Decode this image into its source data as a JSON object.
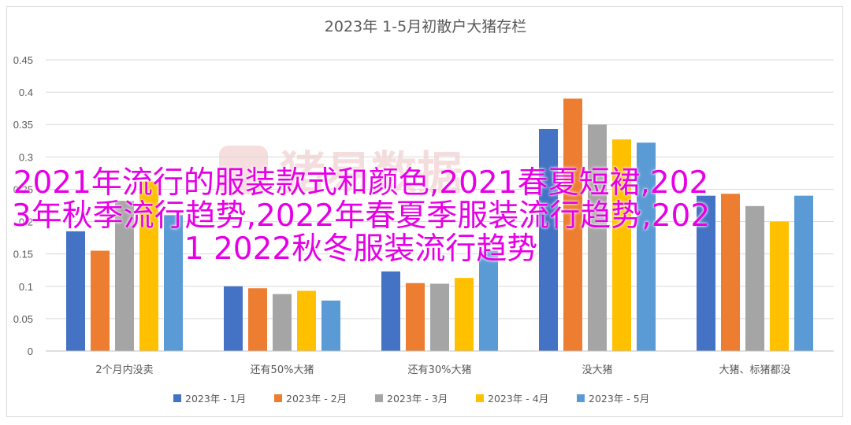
{
  "chart_data": {
    "type": "bar",
    "title": "2023年 1-5月初散户大猪存栏",
    "categories": [
      "2个月内没卖",
      "还有50%大猪",
      "还有30%大猪",
      "没大猪",
      "大猪、标猪都没"
    ],
    "series": [
      {
        "name": "2023年 - 1月",
        "color": "#4472C4",
        "values": [
          0.185,
          0.1,
          0.123,
          0.343,
          0.24
        ]
      },
      {
        "name": "2023年 - 2月",
        "color": "#ED7D31",
        "values": [
          0.155,
          0.097,
          0.105,
          0.39,
          0.243
        ]
      },
      {
        "name": "2023年 - 3月",
        "color": "#A5A5A5",
        "values": [
          0.232,
          0.088,
          0.104,
          0.35,
          0.224
        ]
      },
      {
        "name": "2023年 - 4月",
        "color": "#FFC000",
        "values": [
          0.262,
          0.093,
          0.113,
          0.327,
          0.2
        ]
      },
      {
        "name": "2023年 - 5月",
        "color": "#5B9BD5",
        "values": [
          0.21,
          0.078,
          0.155,
          0.322,
          0.24
        ]
      }
    ],
    "yticks": [
      "0",
      "0.05",
      "0.1",
      "0.15",
      "0.2",
      "0.25",
      "0.3",
      "0.35",
      "0.4",
      "0.45"
    ],
    "ylim": [
      0,
      0.45
    ],
    "grid": true,
    "legend": "bottom"
  },
  "watermark_text": "猪易数据",
  "overlay_text": "2021年流行的服装款式和颜色,2021春夏短裙,2023年秋季流行趋势,2022年春夏季服装流行趋势,2021 2022秋冬服装流行趋势"
}
